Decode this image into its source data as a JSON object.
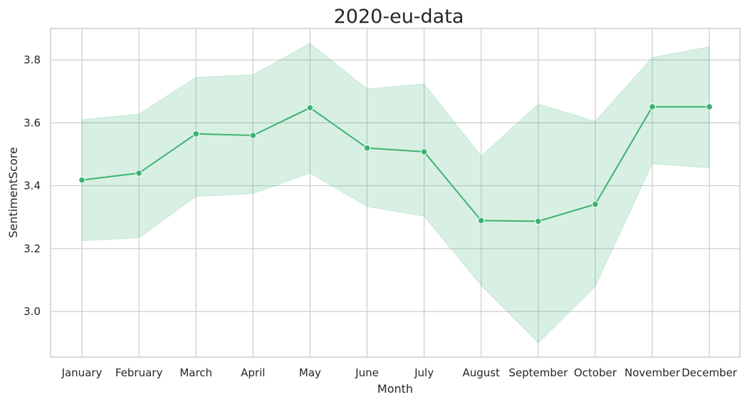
{
  "chart_data": {
    "type": "line",
    "title": "2020-eu-data",
    "xlabel": "Month",
    "ylabel": "SentimentScore",
    "categories": [
      "January",
      "February",
      "March",
      "April",
      "May",
      "June",
      "July",
      "August",
      "September",
      "October",
      "November",
      "December"
    ],
    "series": [
      {
        "values": [
          3.418,
          3.44,
          3.565,
          3.56,
          3.648,
          3.52,
          3.508,
          3.289,
          3.287,
          3.341,
          3.651,
          3.651
        ],
        "ci_upper": [
          3.61,
          3.628,
          3.745,
          3.753,
          3.853,
          3.708,
          3.724,
          3.494,
          3.66,
          3.605,
          3.808,
          3.842
        ],
        "ci_lower": [
          3.225,
          3.234,
          3.366,
          3.375,
          3.44,
          3.334,
          3.303,
          3.083,
          2.9,
          3.08,
          3.47,
          3.457
        ],
        "color": "#3cb371"
      }
    ],
    "yticks": [
      3.0,
      3.2,
      3.4,
      3.6,
      3.8
    ],
    "ytick_labels": [
      "3.0",
      "3.2",
      "3.4",
      "3.6",
      "3.8"
    ],
    "ylim": [
      2.855,
      3.9
    ],
    "grid": true,
    "legend": "none"
  }
}
